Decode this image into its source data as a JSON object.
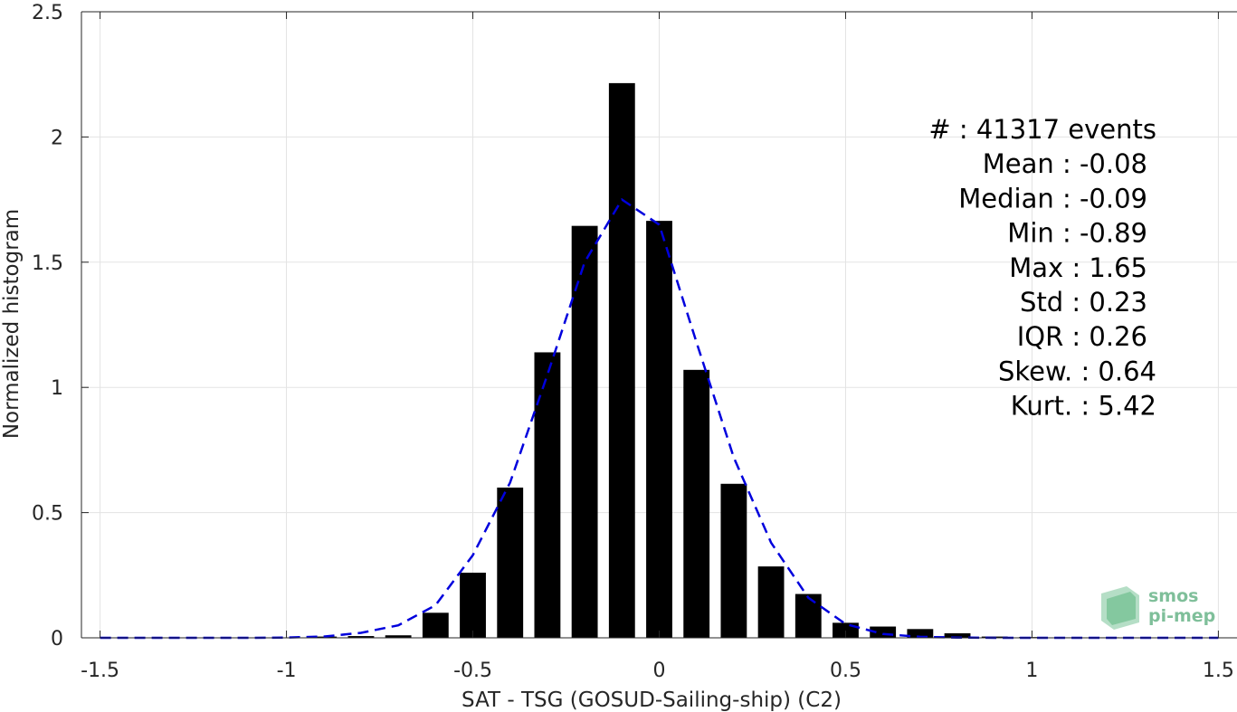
{
  "chart_data": {
    "type": "bar",
    "xlabel": "SAT - TSG (GOSUD-Sailing-ship) (C2)",
    "ylabel": "Normalized histogram",
    "xlim": [
      -1.55,
      1.55
    ],
    "ylim": [
      0,
      2.5
    ],
    "xticks": [
      -1.5,
      -1,
      -0.5,
      0,
      0.5,
      1,
      1.5
    ],
    "xtick_labels": [
      "-1.5",
      "-1",
      "-0.5",
      "0",
      "0.5",
      "1",
      "1.5"
    ],
    "yticks": [
      0,
      0.5,
      1,
      1.5,
      2,
      2.5
    ],
    "ytick_labels": [
      "0",
      "0.5",
      "1",
      "1.5",
      "2",
      "2.5"
    ],
    "grid": true,
    "bar_width": 0.07,
    "bar_color": "#000000",
    "bars": {
      "x": [
        -0.9,
        -0.8,
        -0.7,
        -0.6,
        -0.5,
        -0.4,
        -0.3,
        -0.2,
        -0.1,
        0.0,
        0.1,
        0.2,
        0.3,
        0.4,
        0.5,
        0.6,
        0.7,
        0.8,
        0.9,
        1.0,
        1.1,
        1.2,
        1.3,
        1.4,
        1.5
      ],
      "values": [
        0.005,
        0.007,
        0.01,
        0.1,
        0.26,
        0.6,
        1.14,
        1.645,
        2.215,
        1.665,
        1.07,
        0.615,
        0.285,
        0.175,
        0.06,
        0.045,
        0.035,
        0.018,
        0.005,
        0.003,
        0.002,
        0.002,
        0.001,
        0.001,
        0.001
      ]
    },
    "fit_curve": {
      "style": "dashed",
      "color": "#0000dd",
      "x": [
        -1.5,
        -1.4,
        -1.3,
        -1.2,
        -1.1,
        -1.0,
        -0.9,
        -0.8,
        -0.7,
        -0.6,
        -0.5,
        -0.4,
        -0.3,
        -0.2,
        -0.1,
        0.0,
        0.1,
        0.2,
        0.3,
        0.4,
        0.5,
        0.6,
        0.7,
        0.8,
        0.9,
        1.0,
        1.1,
        1.2,
        1.3,
        1.4,
        1.5
      ],
      "y": [
        0,
        0,
        0,
        0,
        0,
        0.001,
        0.005,
        0.02,
        0.05,
        0.13,
        0.33,
        0.62,
        1.05,
        1.5,
        1.75,
        1.65,
        1.18,
        0.72,
        0.38,
        0.16,
        0.055,
        0.015,
        0.004,
        0.001,
        0,
        0,
        0,
        0,
        0,
        0,
        0
      ]
    },
    "stats": [
      {
        "label": "#  : 41317 events",
        "align": "wide"
      },
      {
        "label": "Mean : -0.08",
        "align": "right"
      },
      {
        "label": "Median : -0.09",
        "align": "right"
      },
      {
        "label": "Min : -0.89",
        "align": "right"
      },
      {
        "label": "Max : 1.65",
        "align": "right"
      },
      {
        "label": "Std : 0.23",
        "align": "right"
      },
      {
        "label": "IQR : 0.26",
        "align": "right"
      },
      {
        "label": "Skew. : 0.64",
        "align": "wide"
      },
      {
        "label": "Kurt. : 5.42",
        "align": "wide"
      }
    ]
  },
  "logo": {
    "line1": "smos",
    "line2": "pi-mep",
    "color": "#7fbf9a"
  }
}
